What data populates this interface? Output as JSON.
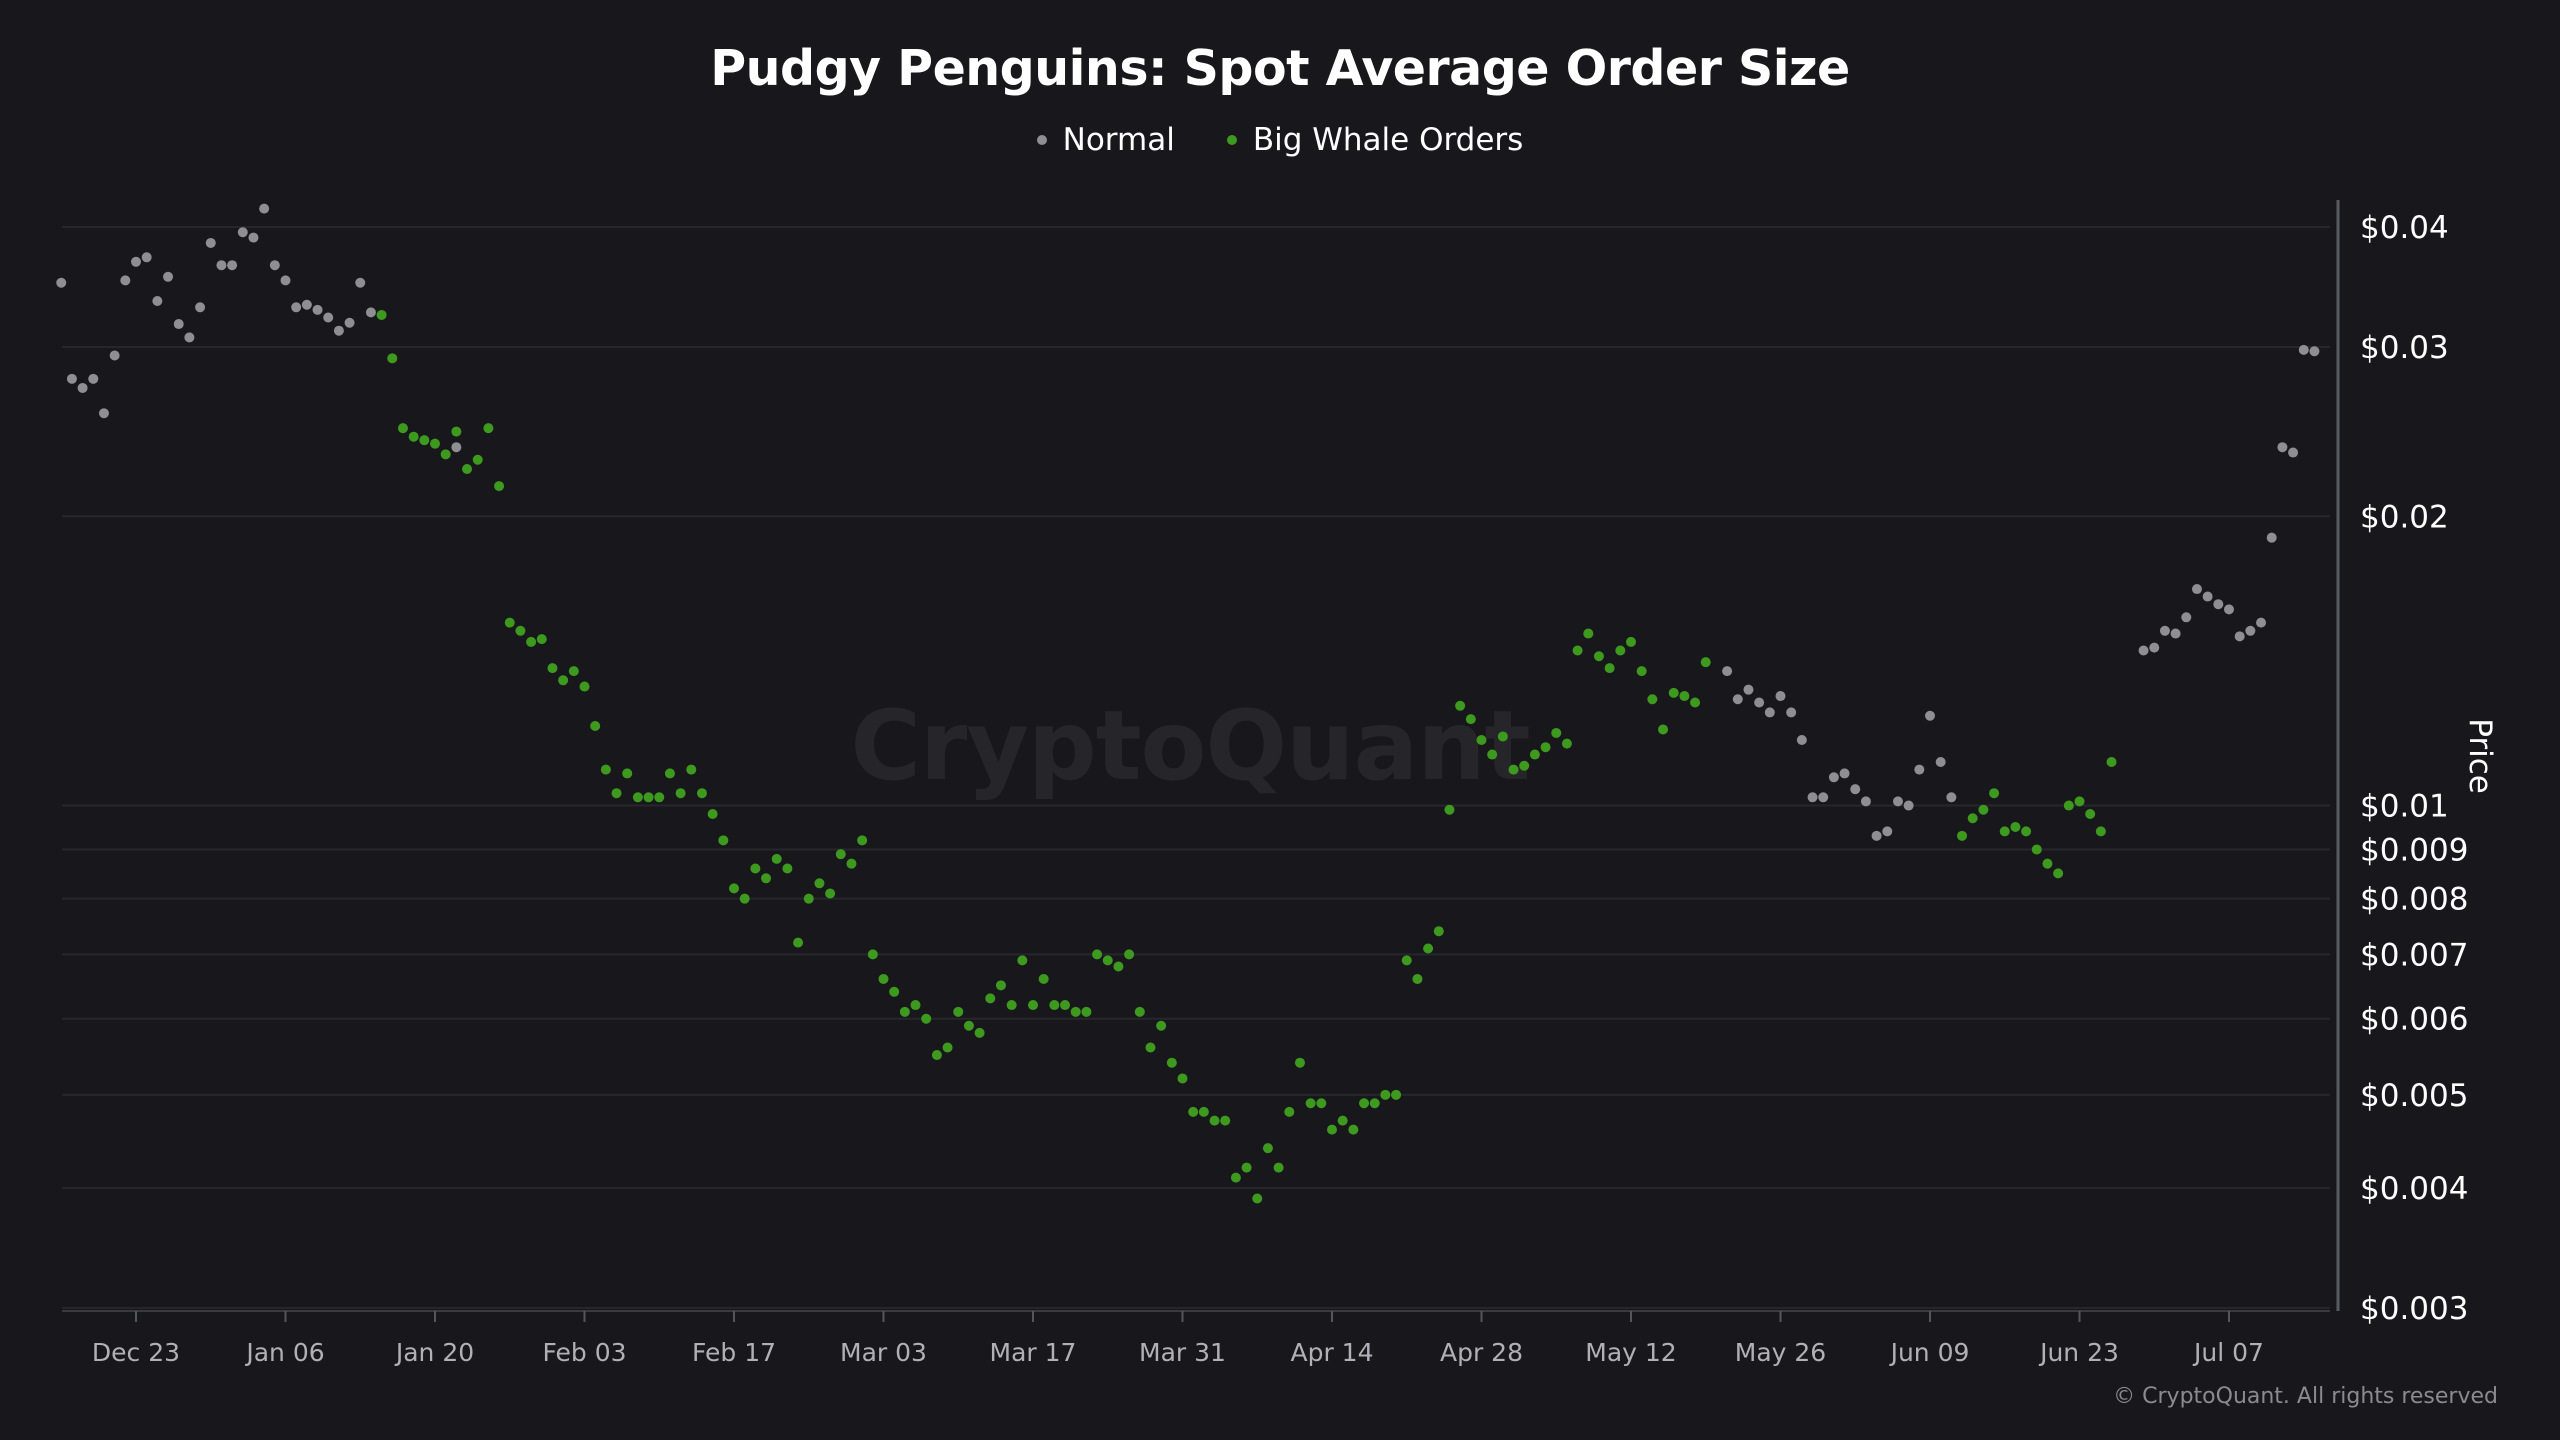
{
  "title": "Pudgy Penguins: Spot Average Order Size",
  "watermark": "CryptoQuant",
  "copyright": "© CryptoQuant. All rights reserved",
  "legend": [
    {
      "label": "Normal",
      "color": "#8e8e93"
    },
    {
      "label": "Big Whale Orders",
      "color": "#3d9a1e"
    }
  ],
  "chart_data": {
    "type": "scatter",
    "title": "Pudgy Penguins: Spot Average Order Size",
    "ylabel": "Price",
    "yscale": "log",
    "ylim": [
      0.003,
      0.04
    ],
    "y_ticks": [
      0.003,
      0.004,
      0.005,
      0.006,
      0.007,
      0.008,
      0.009,
      0.01,
      0.02,
      0.03,
      0.04
    ],
    "y_tick_labels": [
      "$0.003",
      "$0.004",
      "$0.005",
      "$0.006",
      "$0.007",
      "$0.008",
      "$0.009",
      "$0.01",
      "$0.02",
      "$0.03",
      "$0.04"
    ],
    "xlim": [
      "2024-12-16",
      "2025-07-13"
    ],
    "x_ticks": [
      "2024-12-23",
      "2025-01-06",
      "2025-01-20",
      "2025-02-03",
      "2025-02-17",
      "2025-03-03",
      "2025-03-17",
      "2025-03-31",
      "2025-04-14",
      "2025-04-28",
      "2025-05-12",
      "2025-05-26",
      "2025-06-09",
      "2025-06-23",
      "2025-07-07"
    ],
    "x_tick_labels": [
      "Dec 23",
      "Jan 06",
      "Jan 20",
      "Feb 03",
      "Feb 17",
      "Mar 03",
      "Mar 17",
      "Mar 31",
      "Apr 14",
      "Apr 28",
      "May 12",
      "May 26",
      "Jun 09",
      "Jun 23",
      "Jul 07"
    ],
    "grid": true,
    "legend_position": "top-center",
    "series": [
      {
        "name": "Normal",
        "color": "#8e8e93",
        "points": [
          [
            "2024-12-16",
            0.035
          ],
          [
            "2024-12-17",
            0.0278
          ],
          [
            "2024-12-18",
            0.0272
          ],
          [
            "2024-12-19",
            0.0278
          ],
          [
            "2024-12-20",
            0.0256
          ],
          [
            "2024-12-21",
            0.0294
          ],
          [
            "2024-12-22",
            0.0352
          ],
          [
            "2024-12-23",
            0.0368
          ],
          [
            "2024-12-24",
            0.0372
          ],
          [
            "2024-12-25",
            0.0335
          ],
          [
            "2024-12-26",
            0.0355
          ],
          [
            "2024-12-27",
            0.0317
          ],
          [
            "2024-12-28",
            0.0307
          ],
          [
            "2024-12-29",
            0.033
          ],
          [
            "2024-12-30",
            0.0385
          ],
          [
            "2024-12-31",
            0.0365
          ],
          [
            "2025-01-01",
            0.0365
          ],
          [
            "2025-01-02",
            0.0395
          ],
          [
            "2025-01-03",
            0.039
          ],
          [
            "2025-01-04",
            0.0418
          ],
          [
            "2025-01-05",
            0.0365
          ],
          [
            "2025-01-06",
            0.0352
          ],
          [
            "2025-01-07",
            0.033
          ],
          [
            "2025-01-08",
            0.0332
          ],
          [
            "2025-01-09",
            0.0328
          ],
          [
            "2025-01-10",
            0.0322
          ],
          [
            "2025-01-11",
            0.0312
          ],
          [
            "2025-01-12",
            0.0318
          ],
          [
            "2025-01-13",
            0.035
          ],
          [
            "2025-01-14",
            0.0326
          ],
          [
            "2025-01-22",
            0.0236
          ],
          [
            "2025-05-21",
            0.0138
          ],
          [
            "2025-05-22",
            0.0129
          ],
          [
            "2025-05-23",
            0.0132
          ],
          [
            "2025-05-24",
            0.0128
          ],
          [
            "2025-05-25",
            0.0125
          ],
          [
            "2025-05-26",
            0.013
          ],
          [
            "2025-05-27",
            0.0125
          ],
          [
            "2025-05-28",
            0.0117
          ],
          [
            "2025-05-29",
            0.0102
          ],
          [
            "2025-05-30",
            0.0102
          ],
          [
            "2025-05-31",
            0.0107
          ],
          [
            "2025-06-01",
            0.0108
          ],
          [
            "2025-06-02",
            0.0104
          ],
          [
            "2025-06-03",
            0.0101
          ],
          [
            "2025-06-04",
            0.0093
          ],
          [
            "2025-06-05",
            0.0094
          ],
          [
            "2025-06-06",
            0.0101
          ],
          [
            "2025-06-07",
            0.01
          ],
          [
            "2025-06-08",
            0.0109
          ],
          [
            "2025-06-09",
            0.0124
          ],
          [
            "2025-06-10",
            0.0111
          ],
          [
            "2025-06-11",
            0.0102
          ],
          [
            "2025-06-29",
            0.0145
          ],
          [
            "2025-06-30",
            0.0146
          ],
          [
            "2025-07-01",
            0.0152
          ],
          [
            "2025-07-02",
            0.0151
          ],
          [
            "2025-07-03",
            0.0157
          ],
          [
            "2025-07-04",
            0.0168
          ],
          [
            "2025-07-05",
            0.0165
          ],
          [
            "2025-07-06",
            0.0162
          ],
          [
            "2025-07-07",
            0.016
          ],
          [
            "2025-07-08",
            0.015
          ],
          [
            "2025-07-09",
            0.0152
          ],
          [
            "2025-07-10",
            0.0155
          ],
          [
            "2025-07-11",
            0.019
          ],
          [
            "2025-07-12",
            0.0236
          ],
          [
            "2025-07-13",
            0.0233
          ],
          [
            "2025-07-14",
            0.0298
          ],
          [
            "2025-07-15",
            0.0297
          ]
        ]
      },
      {
        "name": "Big Whale Orders",
        "color": "#3d9a1e",
        "points": [
          [
            "2025-01-15",
            0.0324
          ],
          [
            "2025-01-16",
            0.0292
          ],
          [
            "2025-01-17",
            0.0247
          ],
          [
            "2025-01-18",
            0.0242
          ],
          [
            "2025-01-19",
            0.024
          ],
          [
            "2025-01-20",
            0.0238
          ],
          [
            "2025-01-21",
            0.0232
          ],
          [
            "2025-01-22",
            0.0245
          ],
          [
            "2025-01-23",
            0.0224
          ],
          [
            "2025-01-24",
            0.0229
          ],
          [
            "2025-01-25",
            0.0247
          ],
          [
            "2025-01-26",
            0.0215
          ],
          [
            "2025-01-27",
            0.0155
          ],
          [
            "2025-01-28",
            0.0152
          ],
          [
            "2025-01-29",
            0.0148
          ],
          [
            "2025-01-30",
            0.0149
          ],
          [
            "2025-01-31",
            0.0139
          ],
          [
            "2025-02-01",
            0.0135
          ],
          [
            "2025-02-02",
            0.0138
          ],
          [
            "2025-02-03",
            0.0133
          ],
          [
            "2025-02-04",
            0.0121
          ],
          [
            "2025-02-05",
            0.0109
          ],
          [
            "2025-02-06",
            0.0103
          ],
          [
            "2025-02-07",
            0.0108
          ],
          [
            "2025-02-08",
            0.0102
          ],
          [
            "2025-02-09",
            0.0102
          ],
          [
            "2025-02-10",
            0.0102
          ],
          [
            "2025-02-11",
            0.0108
          ],
          [
            "2025-02-12",
            0.0103
          ],
          [
            "2025-02-13",
            0.0109
          ],
          [
            "2025-02-14",
            0.0103
          ],
          [
            "2025-02-15",
            0.0098
          ],
          [
            "2025-02-16",
            0.0092
          ],
          [
            "2025-02-17",
            0.0082
          ],
          [
            "2025-02-18",
            0.008
          ],
          [
            "2025-02-19",
            0.0086
          ],
          [
            "2025-02-20",
            0.0084
          ],
          [
            "2025-02-21",
            0.0088
          ],
          [
            "2025-02-22",
            0.0086
          ],
          [
            "2025-02-23",
            0.0072
          ],
          [
            "2025-02-24",
            0.008
          ],
          [
            "2025-02-25",
            0.0083
          ],
          [
            "2025-02-26",
            0.0081
          ],
          [
            "2025-02-27",
            0.0089
          ],
          [
            "2025-02-28",
            0.0087
          ],
          [
            "2025-03-01",
            0.0092
          ],
          [
            "2025-03-02",
            0.007
          ],
          [
            "2025-03-03",
            0.0066
          ],
          [
            "2025-03-04",
            0.0064
          ],
          [
            "2025-03-05",
            0.0061
          ],
          [
            "2025-03-06",
            0.0062
          ],
          [
            "2025-03-07",
            0.006
          ],
          [
            "2025-03-08",
            0.0055
          ],
          [
            "2025-03-09",
            0.0056
          ],
          [
            "2025-03-10",
            0.0061
          ],
          [
            "2025-03-11",
            0.0059
          ],
          [
            "2025-03-12",
            0.0058
          ],
          [
            "2025-03-13",
            0.0063
          ],
          [
            "2025-03-14",
            0.0065
          ],
          [
            "2025-03-15",
            0.0062
          ],
          [
            "2025-03-16",
            0.0069
          ],
          [
            "2025-03-17",
            0.0062
          ],
          [
            "2025-03-18",
            0.0066
          ],
          [
            "2025-03-19",
            0.0062
          ],
          [
            "2025-03-20",
            0.0062
          ],
          [
            "2025-03-21",
            0.0061
          ],
          [
            "2025-03-22",
            0.0061
          ],
          [
            "2025-03-23",
            0.007
          ],
          [
            "2025-03-24",
            0.0069
          ],
          [
            "2025-03-25",
            0.0068
          ],
          [
            "2025-03-26",
            0.007
          ],
          [
            "2025-03-27",
            0.0061
          ],
          [
            "2025-03-28",
            0.0056
          ],
          [
            "2025-03-29",
            0.0059
          ],
          [
            "2025-03-30",
            0.0054
          ],
          [
            "2025-03-31",
            0.0052
          ],
          [
            "2025-04-01",
            0.0048
          ],
          [
            "2025-04-02",
            0.0048
          ],
          [
            "2025-04-03",
            0.0047
          ],
          [
            "2025-04-04",
            0.0047
          ],
          [
            "2025-04-05",
            0.0041
          ],
          [
            "2025-04-06",
            0.0042
          ],
          [
            "2025-04-07",
            0.0039
          ],
          [
            "2025-04-08",
            0.0044
          ],
          [
            "2025-04-09",
            0.0042
          ],
          [
            "2025-04-10",
            0.0048
          ],
          [
            "2025-04-11",
            0.0054
          ],
          [
            "2025-04-12",
            0.0049
          ],
          [
            "2025-04-13",
            0.0049
          ],
          [
            "2025-04-14",
            0.0046
          ],
          [
            "2025-04-15",
            0.0047
          ],
          [
            "2025-04-16",
            0.0046
          ],
          [
            "2025-04-17",
            0.0049
          ],
          [
            "2025-04-18",
            0.0049
          ],
          [
            "2025-04-19",
            0.005
          ],
          [
            "2025-04-20",
            0.005
          ],
          [
            "2025-04-21",
            0.0069
          ],
          [
            "2025-04-22",
            0.0066
          ],
          [
            "2025-04-23",
            0.0071
          ],
          [
            "2025-04-24",
            0.0074
          ],
          [
            "2025-04-25",
            0.0099
          ],
          [
            "2025-04-26",
            0.0127
          ],
          [
            "2025-04-27",
            0.0123
          ],
          [
            "2025-04-28",
            0.0117
          ],
          [
            "2025-04-29",
            0.0113
          ],
          [
            "2025-04-30",
            0.0118
          ],
          [
            "2025-05-01",
            0.0109
          ],
          [
            "2025-05-02",
            0.011
          ],
          [
            "2025-05-03",
            0.0113
          ],
          [
            "2025-05-04",
            0.0115
          ],
          [
            "2025-05-05",
            0.0119
          ],
          [
            "2025-05-06",
            0.0116
          ],
          [
            "2025-05-07",
            0.0145
          ],
          [
            "2025-05-08",
            0.0151
          ],
          [
            "2025-05-09",
            0.0143
          ],
          [
            "2025-05-10",
            0.0139
          ],
          [
            "2025-05-11",
            0.0145
          ],
          [
            "2025-05-12",
            0.0148
          ],
          [
            "2025-05-13",
            0.0138
          ],
          [
            "2025-05-14",
            0.0129
          ],
          [
            "2025-05-15",
            0.012
          ],
          [
            "2025-05-16",
            0.0131
          ],
          [
            "2025-05-17",
            0.013
          ],
          [
            "2025-05-18",
            0.0128
          ],
          [
            "2025-05-19",
            0.0141
          ],
          [
            "2025-06-12",
            0.0093
          ],
          [
            "2025-06-13",
            0.0097
          ],
          [
            "2025-06-14",
            0.0099
          ],
          [
            "2025-06-15",
            0.0103
          ],
          [
            "2025-06-16",
            0.0094
          ],
          [
            "2025-06-17",
            0.0095
          ],
          [
            "2025-06-18",
            0.0094
          ],
          [
            "2025-06-19",
            0.009
          ],
          [
            "2025-06-20",
            0.0087
          ],
          [
            "2025-06-21",
            0.0085
          ],
          [
            "2025-06-22",
            0.01
          ],
          [
            "2025-06-23",
            0.0101
          ],
          [
            "2025-06-24",
            0.0098
          ],
          [
            "2025-06-25",
            0.0094
          ],
          [
            "2025-06-26",
            0.0111
          ]
        ]
      }
    ]
  }
}
